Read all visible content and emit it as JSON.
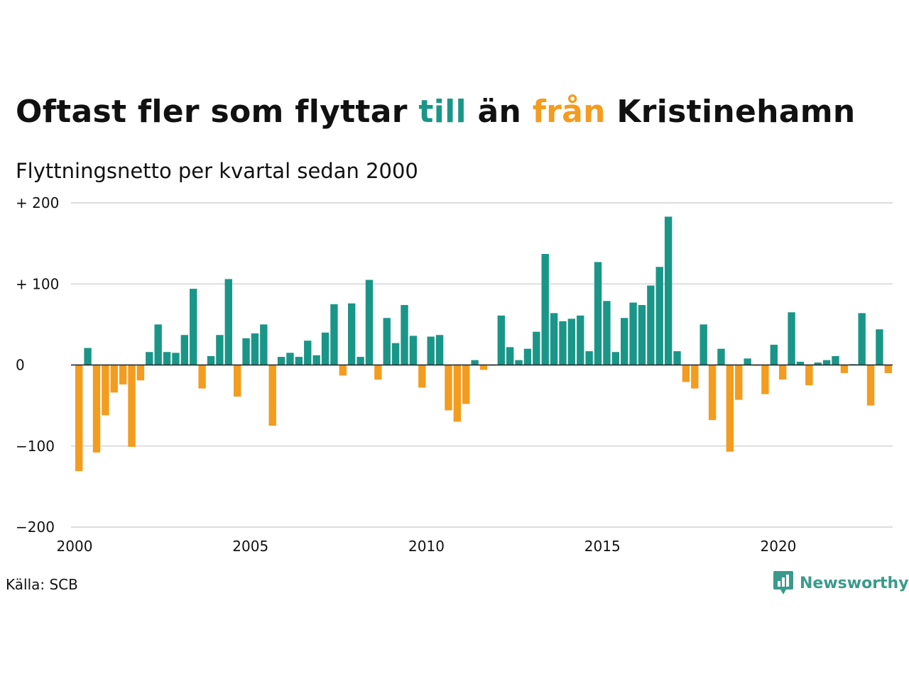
{
  "title": {
    "part1": "Oftast fler som flyttar ",
    "till": "till",
    "part2": " än ",
    "fran": "från",
    "part3": " Kristinehamn"
  },
  "subtitle": "Flyttningsnetto per kvartal sedan 2000",
  "source": "Källa: SCB",
  "logo": {
    "name": "Newsworthy",
    "icon": "newsworthy-chart-bubble-icon"
  },
  "colors": {
    "positive": "#1a9688",
    "negative": "#f39c1e",
    "grid": "#dddddd",
    "brand": "#3a9a8c"
  },
  "chart_data": {
    "type": "bar",
    "x_start": 2000,
    "x_step": 0.25,
    "xlim": [
      2000,
      2023.25
    ],
    "ylim": [
      -200,
      200
    ],
    "yticks": [
      200,
      100,
      0,
      -100,
      -200
    ],
    "ytick_labels": [
      "+ 200",
      "+ 100",
      "0",
      "−100",
      "−200"
    ],
    "xticks": [
      2000,
      2005,
      2010,
      2015,
      2020
    ],
    "xtick_labels": [
      "2000",
      "2005",
      "2010",
      "2015",
      "2020"
    ],
    "grid": true,
    "values": [
      -131,
      21,
      -108,
      -62,
      -34,
      -24,
      -101,
      -19,
      16,
      50,
      16,
      15,
      37,
      94,
      -29,
      11,
      37,
      106,
      -39,
      33,
      39,
      50,
      -75,
      10,
      15,
      10,
      30,
      12,
      40,
      75,
      -13,
      76,
      10,
      105,
      -18,
      58,
      27,
      74,
      36,
      -28,
      35,
      37,
      -56,
      -70,
      -48,
      6,
      -6,
      -1,
      61,
      22,
      6,
      20,
      41,
      137,
      64,
      54,
      57,
      61,
      17,
      127,
      79,
      16,
      58,
      77,
      74,
      98,
      121,
      183,
      17,
      -21,
      -29,
      50,
      -68,
      20,
      -107,
      -43,
      8,
      -1,
      -36,
      25,
      -18,
      65,
      4,
      -25,
      3,
      6,
      11,
      -10,
      1,
      64,
      -50,
      44,
      -10
    ]
  }
}
